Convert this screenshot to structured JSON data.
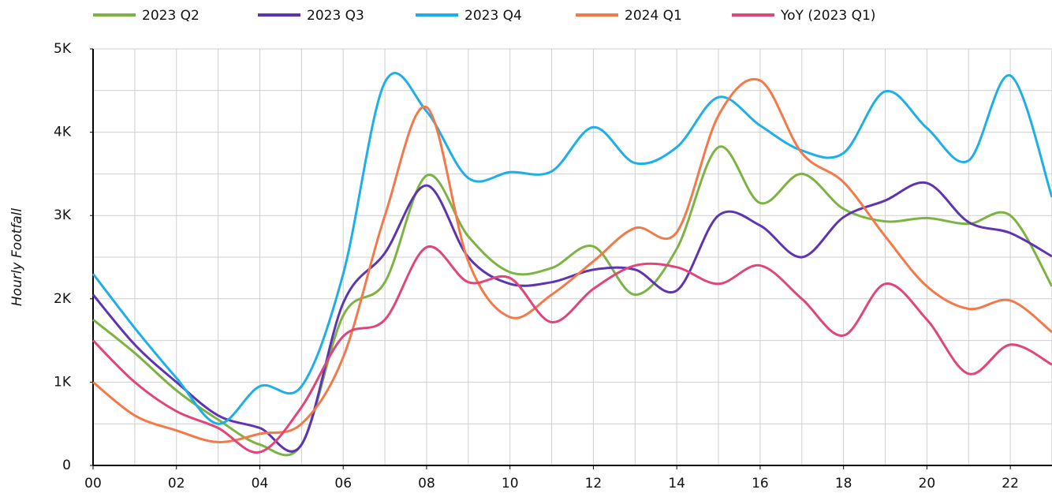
{
  "chart_data": {
    "type": "line",
    "y_label": "Hourly Footfall",
    "x": [
      0,
      1,
      2,
      3,
      4,
      5,
      6,
      7,
      8,
      9,
      10,
      11,
      12,
      13,
      14,
      15,
      16,
      17,
      18,
      19,
      20,
      21,
      22,
      23
    ],
    "xlim": [
      0,
      23
    ],
    "xticks": [
      {
        "value": 0,
        "label": "00"
      },
      {
        "value": 2,
        "label": "02"
      },
      {
        "value": 4,
        "label": "04"
      },
      {
        "value": 6,
        "label": "06"
      },
      {
        "value": 8,
        "label": "08"
      },
      {
        "value": 10,
        "label": "10"
      },
      {
        "value": 12,
        "label": "12"
      },
      {
        "value": 14,
        "label": "14"
      },
      {
        "value": 16,
        "label": "16"
      },
      {
        "value": 18,
        "label": "18"
      },
      {
        "value": 20,
        "label": "20"
      },
      {
        "value": 22,
        "label": "22"
      }
    ],
    "ylim": [
      0,
      5000
    ],
    "yticks": [
      0,
      {
        "value": 1000,
        "label": "1K"
      },
      {
        "value": 2000,
        "label": "2K"
      },
      {
        "value": 3000,
        "label": "3K"
      },
      {
        "value": 4000,
        "label": "4K"
      },
      {
        "value": 5000,
        "label": "5K"
      }
    ],
    "ygrid": [
      500,
      1000,
      1500,
      2000,
      2500,
      3000,
      3500,
      4000,
      4500,
      5000
    ],
    "grid": true,
    "legend": "top",
    "series": [
      {
        "name": "2023 Q2",
        "color": "#7cb342",
        "values": [
          1750,
          1350,
          900,
          550,
          250,
          250,
          1800,
          2200,
          3480,
          2750,
          2320,
          2370,
          2630,
          2050,
          2600,
          3820,
          3150,
          3500,
          3080,
          2930,
          2970,
          2900,
          3000,
          2150
        ]
      },
      {
        "name": "2023 Q3",
        "color": "#5e35b1",
        "values": [
          2050,
          1450,
          1000,
          600,
          450,
          250,
          1950,
          2550,
          3360,
          2500,
          2180,
          2200,
          2350,
          2350,
          2100,
          3000,
          2880,
          2500,
          2980,
          3180,
          3390,
          2920,
          2790,
          2510
        ]
      },
      {
        "name": "2023 Q4",
        "color": "#1eaee8",
        "values": [
          2300,
          1650,
          1050,
          500,
          950,
          950,
          2300,
          4600,
          4250,
          3450,
          3520,
          3530,
          4060,
          3630,
          3820,
          4420,
          4080,
          3780,
          3750,
          4490,
          4050,
          3660,
          4680,
          3220
        ]
      },
      {
        "name": "2024 Q1",
        "color": "#f4794a",
        "values": [
          1000,
          600,
          420,
          280,
          380,
          500,
          1300,
          3000,
          4300,
          2450,
          1780,
          2050,
          2450,
          2850,
          2800,
          4200,
          4620,
          3750,
          3400,
          2750,
          2150,
          1880,
          1980,
          1600
        ]
      },
      {
        "name": "YoY (2023 Q1)",
        "color": "#e0457b",
        "values": [
          1500,
          1000,
          650,
          450,
          160,
          700,
          1550,
          1750,
          2620,
          2200,
          2250,
          1720,
          2120,
          2400,
          2380,
          2180,
          2400,
          2000,
          1560,
          2180,
          1750,
          1100,
          1450,
          1210
        ]
      }
    ]
  }
}
